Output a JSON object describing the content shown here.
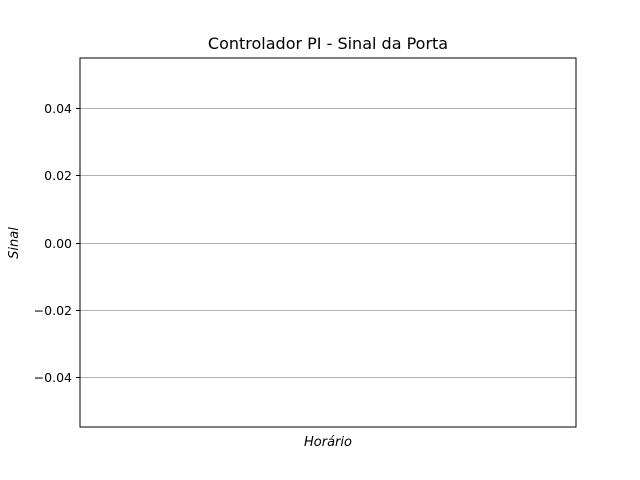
{
  "chart_data": {
    "type": "line",
    "title": "Controlador PI - Sinal da Porta",
    "xlabel": "Horário",
    "ylabel": "Sinal",
    "ylim": [
      -0.055,
      0.055
    ],
    "yticks": [
      -0.04,
      -0.02,
      0.0,
      0.02,
      0.04
    ],
    "ytick_labels": [
      "−0.04",
      "−0.02",
      "0.00",
      "0.02",
      "0.04"
    ],
    "x": [],
    "series": [],
    "grid": "y-major",
    "colors": {
      "grid": "#b0b0b0",
      "axes": "#000000",
      "background": "#ffffff"
    }
  }
}
